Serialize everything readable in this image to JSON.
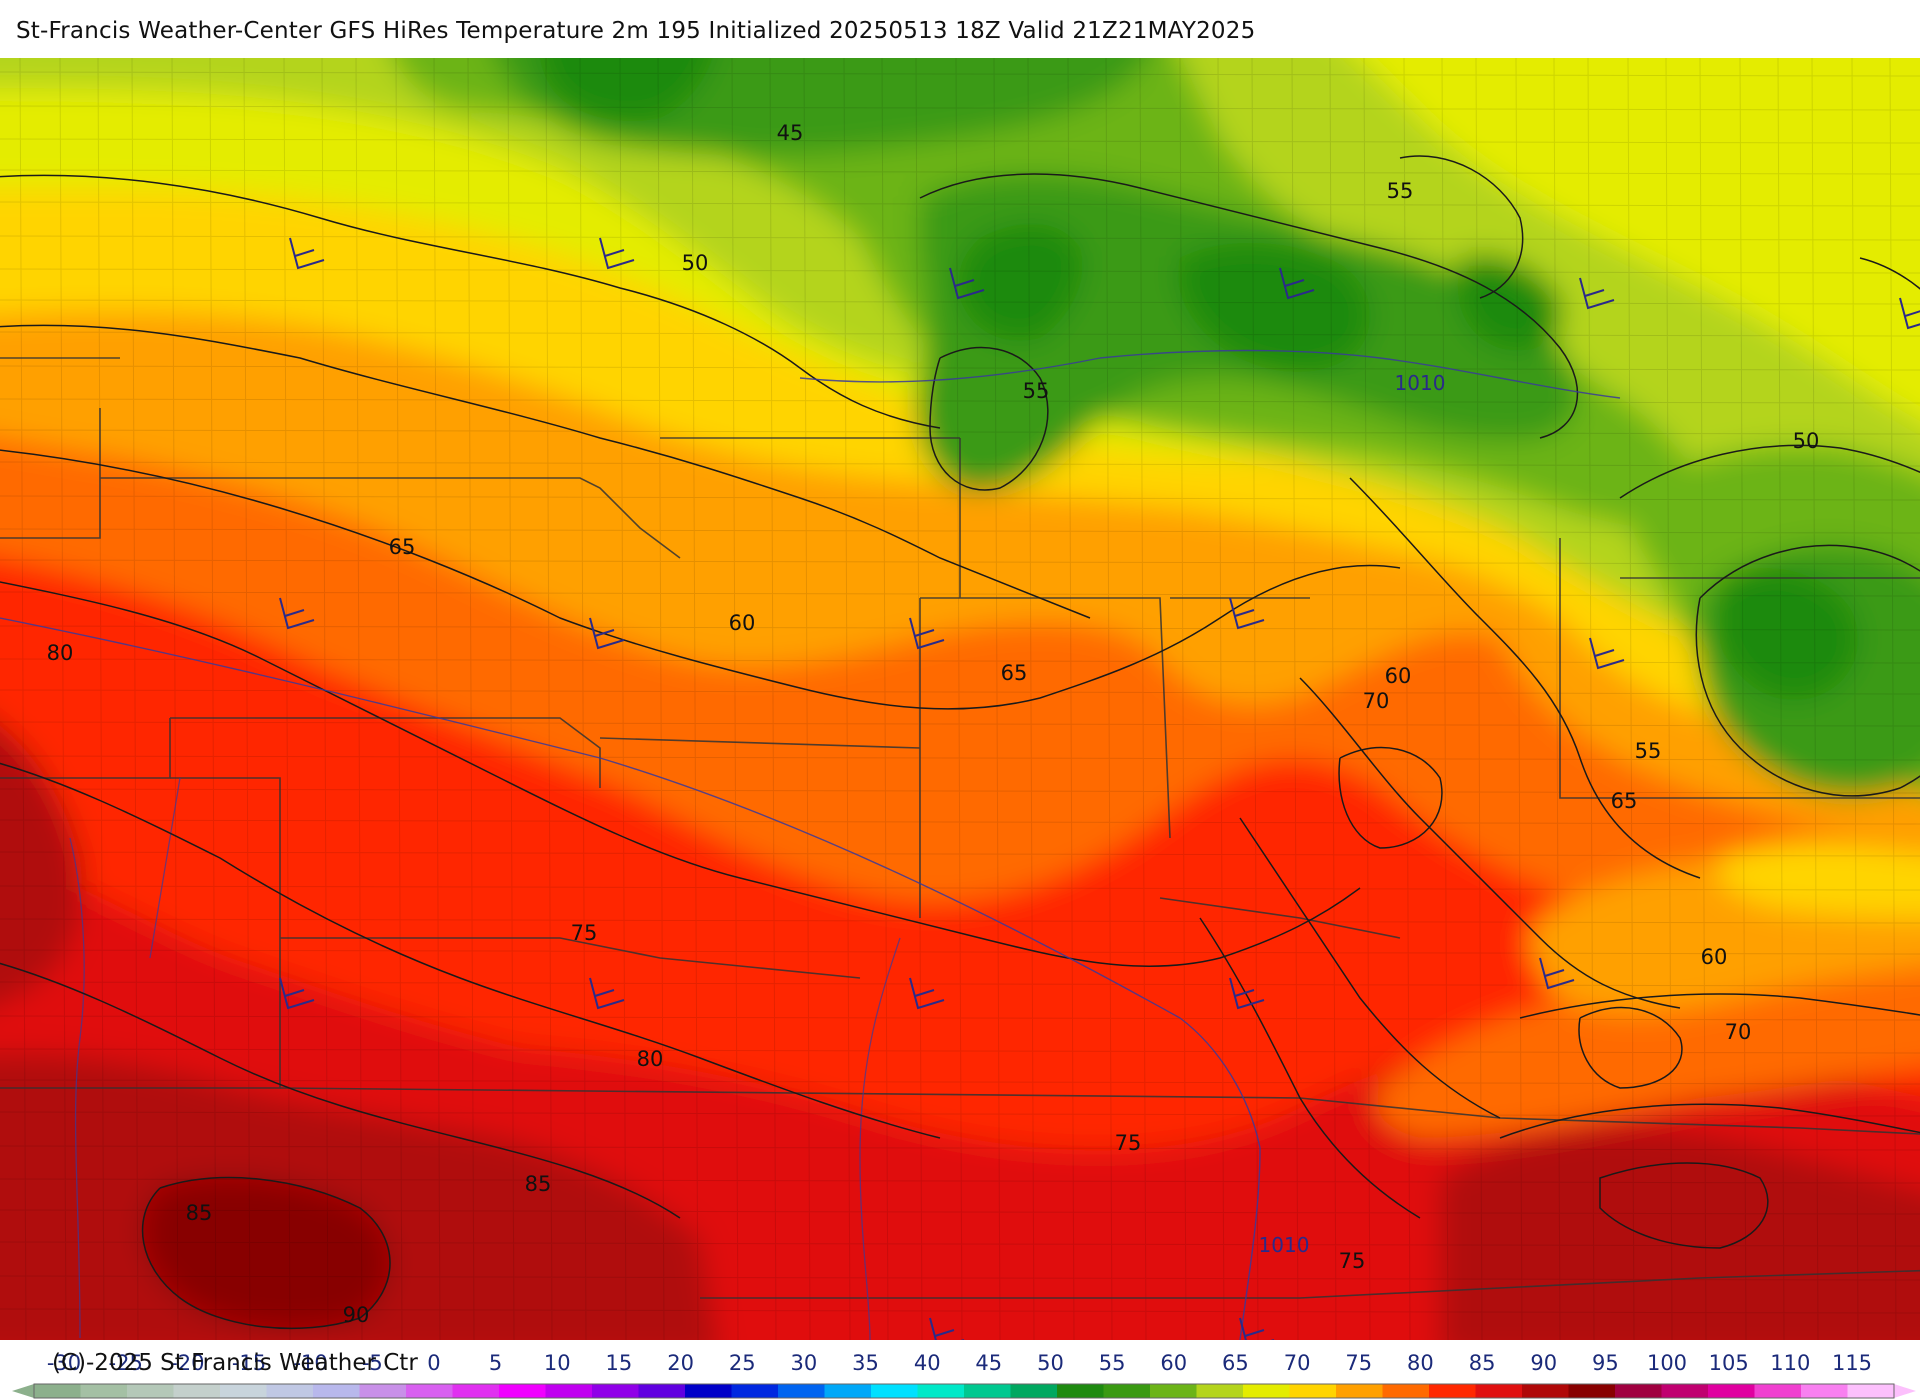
{
  "title": "St-Francis Weather-Center GFS HiRes Temperature 2m  195 Initialized 20250513 18Z Valid 21Z21MAY2025",
  "copyright": "(C)-2025 St Francis Weather Ctr",
  "colors": {
    "t40": "#1e8a10",
    "t45": "#3a9a12",
    "t50": "#6cb418",
    "t55": "#b4d41c",
    "t60": "#e4ec00",
    "t65": "#ffd400",
    "t70": "#ffa000",
    "t75": "#ff6a00",
    "t80": "#ff2800",
    "t85": "#e01010",
    "t90": "#b00808",
    "t95": "#880000",
    "isobar": "#3a3a9a",
    "contour": "#1a1a1a",
    "border": "#333333"
  },
  "contour_labels": [
    {
      "text": "45",
      "value": 45
    },
    {
      "text": "50",
      "value": 50
    },
    {
      "text": "55",
      "value": 55
    },
    {
      "text": "55",
      "value": 55
    },
    {
      "text": "50",
      "value": 50
    },
    {
      "text": "55",
      "value": 55
    },
    {
      "text": "65",
      "value": 65
    },
    {
      "text": "60",
      "value": 60
    },
    {
      "text": "65",
      "value": 65
    },
    {
      "text": "60",
      "value": 60
    },
    {
      "text": "70",
      "value": 70
    },
    {
      "text": "80",
      "value": 80
    },
    {
      "text": "65",
      "value": 65
    },
    {
      "text": "75",
      "value": 75
    },
    {
      "text": "60",
      "value": 60
    },
    {
      "text": "70",
      "value": 70
    },
    {
      "text": "80",
      "value": 80
    },
    {
      "text": "75",
      "value": 75
    },
    {
      "text": "85",
      "value": 85
    },
    {
      "text": "85",
      "value": 85
    },
    {
      "text": "75",
      "value": 75
    },
    {
      "text": "90",
      "value": 90
    }
  ],
  "isobar_labels": [
    {
      "text": "1010",
      "value": 1010
    },
    {
      "text": "1010",
      "value": 1010
    }
  ],
  "legend": {
    "ticks": [
      "-30",
      "-25",
      "-20",
      "-15",
      "-10",
      "-5",
      "0",
      "5",
      "10",
      "15",
      "20",
      "25",
      "30",
      "35",
      "40",
      "45",
      "50",
      "55",
      "60",
      "65",
      "70",
      "75",
      "80",
      "85",
      "90",
      "95",
      "100",
      "105",
      "110",
      "115"
    ],
    "colors": [
      "#8cb08c",
      "#a4c0a4",
      "#b4c8b8",
      "#c4d0cc",
      "#c8d4dc",
      "#c0c8e4",
      "#b8b8ec",
      "#c890e8",
      "#d860f0",
      "#e030f0",
      "#f000ff",
      "#c000f0",
      "#9000e8",
      "#6000e0",
      "#0000c8",
      "#0028e0",
      "#0064f0",
      "#00a8f8",
      "#00e0ff",
      "#00e8c8",
      "#00c890",
      "#00a860",
      "#1e8a10",
      "#3a9a12",
      "#6cb418",
      "#b4d41c",
      "#e4ec00",
      "#ffd400",
      "#ffa000",
      "#ff6a00",
      "#ff2800",
      "#e01010",
      "#b00808",
      "#880000",
      "#a00040",
      "#c00070",
      "#e000a0",
      "#f040d0",
      "#f880f0",
      "#fcc0fc"
    ]
  }
}
